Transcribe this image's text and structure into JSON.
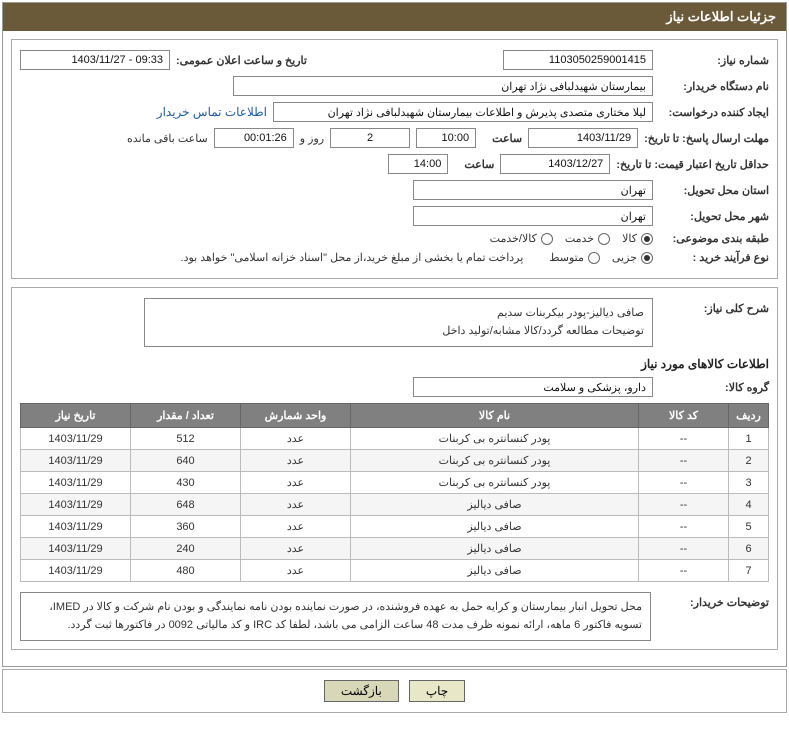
{
  "header": {
    "title": "جزئیات اطلاعات نیاز"
  },
  "fields": {
    "need_number_label": "شماره نیاز:",
    "need_number": "1103050259001415",
    "publish_date_label": "تاریخ و ساعت اعلان عمومی:",
    "publish_date": "09:33 - 1403/11/27",
    "buyer_org_label": "نام دستگاه خریدار:",
    "buyer_org": "بیمارستان شهیدلبافی نژاد تهران",
    "requester_label": "ایجاد کننده درخواست:",
    "requester": "لیلا مختاری متصدی پذیرش و اطلاعات بیمارستان شهیدلبافی نژاد تهران",
    "contact_link": "اطلاعات تماس خریدار",
    "reply_deadline_label": "مهلت ارسال پاسخ: تا تاریخ:",
    "reply_date": "1403/11/29",
    "time_label": "ساعت",
    "reply_time": "10:00",
    "days_count": "2",
    "days_and": "روز و",
    "countdown": "00:01:26",
    "remaining_label": "ساعت باقی مانده",
    "min_validity_label": "حداقل تاریخ اعتبار قیمت: تا تاریخ:",
    "min_validity_date": "1403/12/27",
    "min_validity_time": "14:00",
    "delivery_province_label": "استان محل تحویل:",
    "delivery_province": "تهران",
    "delivery_city_label": "شهر محل تحویل:",
    "delivery_city": "تهران",
    "category_label": "طبقه بندی موضوعی:",
    "category_opts": {
      "goods": "کالا",
      "service": "خدمت",
      "both": "کالا/خدمت"
    },
    "category_selected": "goods",
    "process_label": "نوع فرآیند خرید :",
    "process_opts": {
      "partial": "جزیی",
      "medium": "متوسط"
    },
    "process_selected": "partial",
    "process_note": "پرداخت تمام یا بخشی از مبلغ خرید،از محل \"اسناد خزانه اسلامی\" خواهد بود.",
    "need_desc_label": "شرح کلی نیاز:",
    "need_desc_line1": "صافی دیالیز-پودر بیکربنات سدیم",
    "need_desc_line2": "توضیحات مطالعه گردد/کالا مشابه/تولید داخل",
    "goods_info_title": "اطلاعات کالاهای مورد نیاز",
    "goods_group_label": "گروه کالا:",
    "goods_group": "دارو، پزشکی و سلامت",
    "buyer_notes_label": "توضیحات خریدار:",
    "buyer_notes": "محل تحویل انبار بیمارستان و کرایه حمل به عهده فروشنده، در صورت نماینده بودن نامه نمایندگی و بودن نام شرکت و کالا در IMED، تسویه فاکتور 6 ماهه، ارائه نمونه ظرف مدت 48 ساعت الزامی می باشد، لطفا کد IRC و کد مالیاتی 0092 در فاکتورها ثبت گردد."
  },
  "table": {
    "headers": {
      "idx": "ردیف",
      "code": "کد کالا",
      "name": "نام کالا",
      "unit": "واحد شمارش",
      "qty": "تعداد / مقدار",
      "date": "تاریخ نیاز"
    },
    "rows": [
      {
        "idx": "1",
        "code": "--",
        "name": "پودر کنسانتره بی کربنات",
        "unit": "عدد",
        "qty": "512",
        "date": "1403/11/29"
      },
      {
        "idx": "2",
        "code": "--",
        "name": "پودر کنسانتره بی کربنات",
        "unit": "عدد",
        "qty": "640",
        "date": "1403/11/29"
      },
      {
        "idx": "3",
        "code": "--",
        "name": "پودر کنسانتره بی کربنات",
        "unit": "عدد",
        "qty": "430",
        "date": "1403/11/29"
      },
      {
        "idx": "4",
        "code": "--",
        "name": "صافی دیالیز",
        "unit": "عدد",
        "qty": "648",
        "date": "1403/11/29"
      },
      {
        "idx": "5",
        "code": "--",
        "name": "صافی دیالیز",
        "unit": "عدد",
        "qty": "360",
        "date": "1403/11/29"
      },
      {
        "idx": "6",
        "code": "--",
        "name": "صافی دیالیز",
        "unit": "عدد",
        "qty": "240",
        "date": "1403/11/29"
      },
      {
        "idx": "7",
        "code": "--",
        "name": "صافی دیالیز",
        "unit": "عدد",
        "qty": "480",
        "date": "1403/11/29"
      }
    ]
  },
  "footer": {
    "print": "چاپ",
    "back": "بازگشت"
  },
  "colors": {
    "header_bg": "#6b5a3a",
    "th_bg": "#808080",
    "link": "#1a5ca8"
  }
}
